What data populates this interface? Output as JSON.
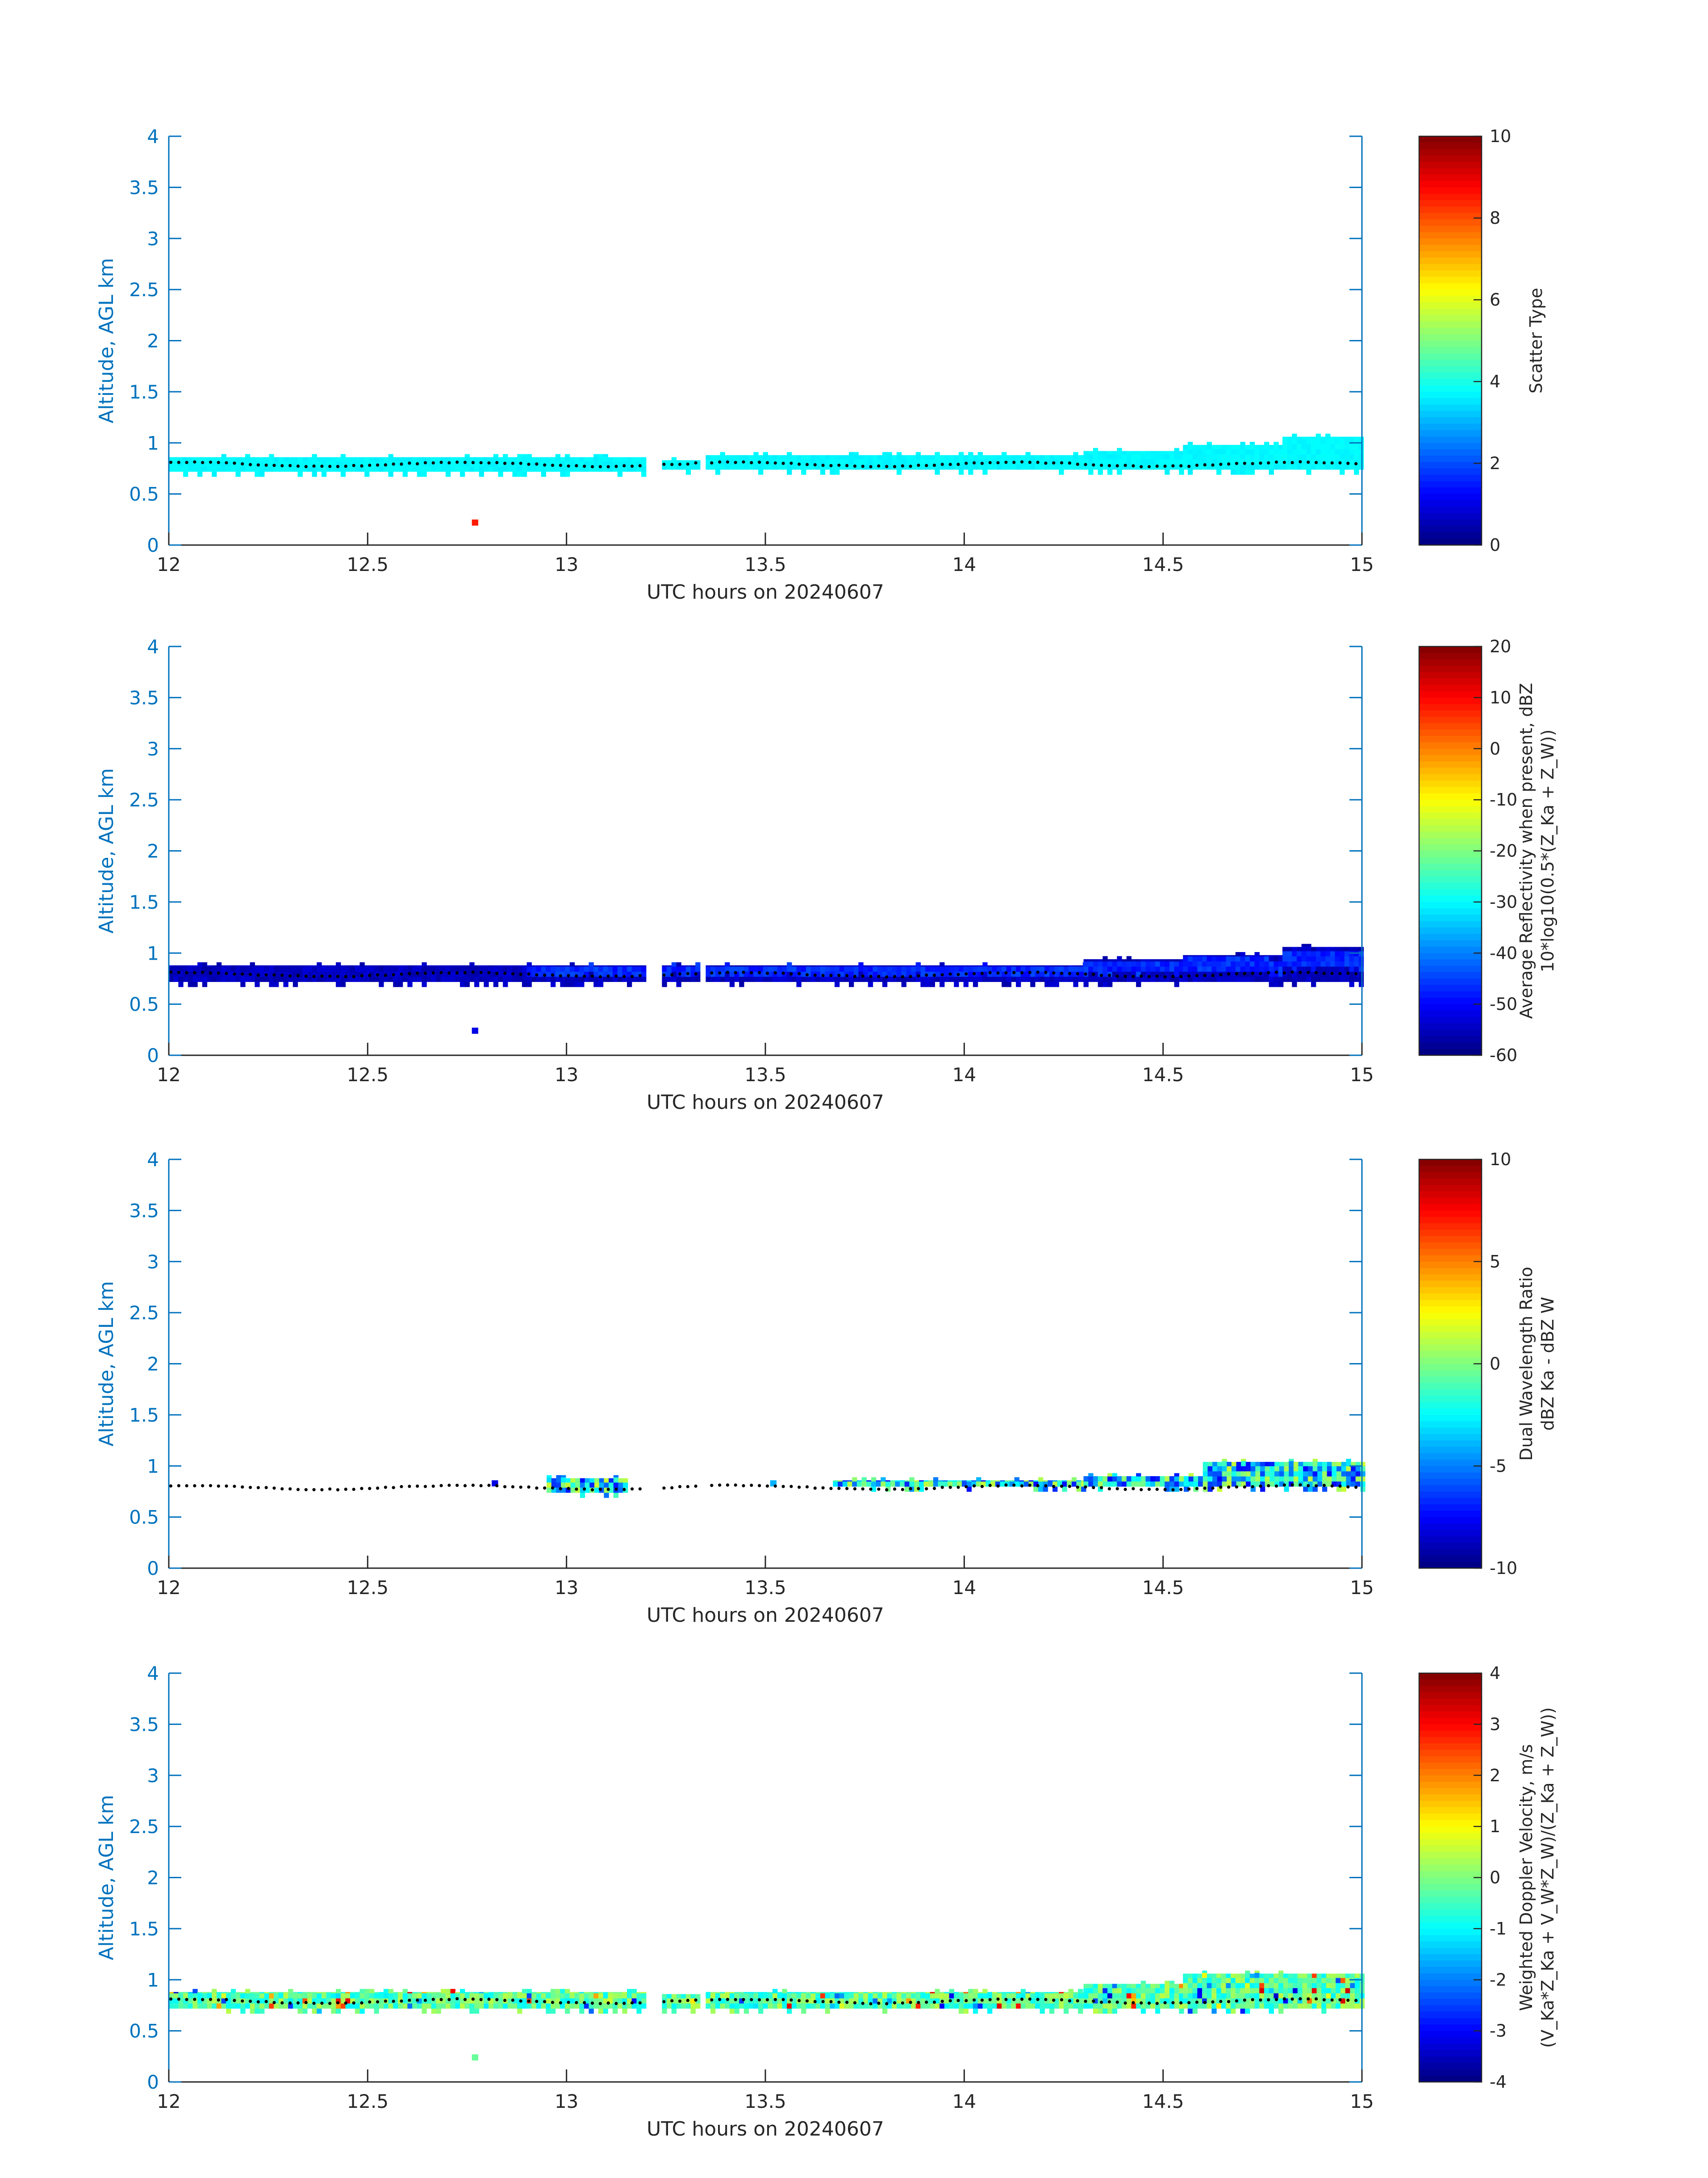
{
  "chart_data": [
    {
      "type": "heatmap",
      "xlabel": "UTC hours on 20240607",
      "ylabel": "Altitude, AGL km",
      "xlim": [
        12,
        15
      ],
      "ylim": [
        0,
        4
      ],
      "xticks": [
        "12",
        "12.5",
        "13",
        "13.5",
        "14",
        "14.5",
        "15"
      ],
      "yticks": [
        "0",
        "0.5",
        "1",
        "1.5",
        "2",
        "2.5",
        "3",
        "3.5",
        "4"
      ],
      "colorbar": {
        "label_lines": [
          "Scatter Type"
        ],
        "range": [
          0,
          10
        ],
        "ticks": [
          "0",
          "2",
          "4",
          "6",
          "8",
          "10"
        ],
        "colormap": "jet"
      },
      "layer": {
        "description_values": "dominant scatter type ~4 in a band from ~0.72 to ~0.85 km, thickening to ~1.05 km after 14.8 h",
        "value": 3.7,
        "segments": [
          {
            "x": [
              12.0,
              13.2
            ],
            "bottom": 0.72,
            "top": 0.86
          },
          {
            "x": [
              13.24,
              13.33
            ],
            "bottom": 0.74,
            "top": 0.83
          },
          {
            "x": [
              13.35,
              14.3
            ],
            "bottom": 0.74,
            "top": 0.88
          },
          {
            "x": [
              14.3,
              14.55
            ],
            "bottom": 0.74,
            "top": 0.92
          },
          {
            "x": [
              14.55,
              14.8
            ],
            "bottom": 0.74,
            "top": 0.98
          },
          {
            "x": [
              14.8,
              15.0
            ],
            "bottom": 0.74,
            "top": 1.06
          }
        ]
      },
      "isolated": [
        {
          "x": 12.77,
          "y": 0.22,
          "value": 8.5
        }
      ],
      "cloud_base_dots": true
    },
    {
      "type": "heatmap",
      "xlabel": "UTC hours on 20240607",
      "ylabel": "Altitude, AGL km",
      "xlim": [
        12,
        15
      ],
      "ylim": [
        0,
        4
      ],
      "xticks": [
        "12",
        "12.5",
        "13",
        "13.5",
        "14",
        "14.5",
        "15"
      ],
      "yticks": [
        "0",
        "0.5",
        "1",
        "1.5",
        "2",
        "2.5",
        "3",
        "3.5",
        "4"
      ],
      "colorbar": {
        "label_lines": [
          "Average Reflectivity when present, dBZ",
          "10*log10(0.5*(Z_Ka + Z_W))"
        ],
        "range": [
          -60,
          20
        ],
        "ticks": [
          "-60",
          "-50",
          "-40",
          "-30",
          "-20",
          "-10",
          "0",
          "10",
          "20"
        ],
        "colormap": "jet"
      },
      "layer": {
        "value": -55,
        "inner_value": -47,
        "segments": [
          {
            "x": [
              12.0,
              13.2
            ],
            "bottom": 0.72,
            "top": 0.88
          },
          {
            "x": [
              13.24,
              13.33
            ],
            "bottom": 0.72,
            "top": 0.88
          },
          {
            "x": [
              13.35,
              14.3
            ],
            "bottom": 0.72,
            "top": 0.88
          },
          {
            "x": [
              14.3,
              14.55
            ],
            "bottom": 0.72,
            "top": 0.94
          },
          {
            "x": [
              14.55,
              14.8
            ],
            "bottom": 0.72,
            "top": 0.98
          },
          {
            "x": [
              14.8,
              15.0
            ],
            "bottom": 0.72,
            "top": 1.06
          }
        ]
      },
      "isolated": [
        {
          "x": 12.77,
          "y": 0.24,
          "value": -52
        }
      ],
      "cloud_base_dots": true
    },
    {
      "type": "heatmap",
      "xlabel": "UTC hours on 20240607",
      "ylabel": "Altitude, AGL km",
      "xlim": [
        12,
        15
      ],
      "ylim": [
        0,
        4
      ],
      "xticks": [
        "12",
        "12.5",
        "13",
        "13.5",
        "14",
        "14.5",
        "15"
      ],
      "yticks": [
        "0",
        "0.5",
        "1",
        "1.5",
        "2",
        "2.5",
        "3",
        "3.5",
        "4"
      ],
      "colorbar": {
        "label_lines": [
          "Dual Wavelength Ratio",
          "dBZ Ka - dBZ W"
        ],
        "range": [
          -10,
          10
        ],
        "ticks": [
          "-10",
          "-5",
          "0",
          "5",
          "10"
        ],
        "colormap": "jet"
      },
      "layer": {
        "value": -3,
        "segments": [
          {
            "x": [
              12.95,
              13.15
            ],
            "bottom": 0.74,
            "top": 0.88
          },
          {
            "x": [
              13.67,
              14.3
            ],
            "bottom": 0.8,
            "top": 0.86
          },
          {
            "x": [
              14.3,
              14.6
            ],
            "bottom": 0.8,
            "top": 0.9
          },
          {
            "x": [
              14.6,
              15.0
            ],
            "bottom": 0.8,
            "top": 1.04
          }
        ]
      },
      "isolated": [
        {
          "x": 12.82,
          "y": 0.83,
          "value": -8
        },
        {
          "x": 13.52,
          "y": 0.83,
          "value": -4
        }
      ],
      "cloud_base_dots": true
    },
    {
      "type": "heatmap",
      "xlabel": "UTC hours on 20240607",
      "ylabel": "Altitude, AGL km",
      "xlim": [
        12,
        15
      ],
      "ylim": [
        0,
        4
      ],
      "xticks": [
        "12",
        "12.5",
        "13",
        "13.5",
        "14",
        "14.5",
        "15"
      ],
      "yticks": [
        "0",
        "0.5",
        "1",
        "1.5",
        "2",
        "2.5",
        "3",
        "3.5",
        "4"
      ],
      "colorbar": {
        "label_lines": [
          "Weighted Doppler Velocity, m/s",
          "(V_Ka*Z_Ka + V_W*Z_W)/(Z_Ka + Z_W))"
        ],
        "range": [
          -4,
          4
        ],
        "ticks": [
          "-4",
          "-3",
          "-2",
          "-1",
          "0",
          "1",
          "2",
          "3",
          "4"
        ],
        "colormap": "jet"
      },
      "layer": {
        "value": -0.3,
        "segments": [
          {
            "x": [
              12.0,
              13.2
            ],
            "bottom": 0.72,
            "top": 0.88
          },
          {
            "x": [
              13.24,
              13.33
            ],
            "bottom": 0.72,
            "top": 0.86
          },
          {
            "x": [
              13.35,
              14.3
            ],
            "bottom": 0.72,
            "top": 0.88
          },
          {
            "x": [
              14.3,
              14.55
            ],
            "bottom": 0.72,
            "top": 0.96
          },
          {
            "x": [
              14.55,
              15.0
            ],
            "bottom": 0.72,
            "top": 1.06
          }
        ]
      },
      "isolated": [
        {
          "x": 12.77,
          "y": 0.24,
          "value": -0.2
        }
      ],
      "cloud_base_dots": true
    }
  ]
}
